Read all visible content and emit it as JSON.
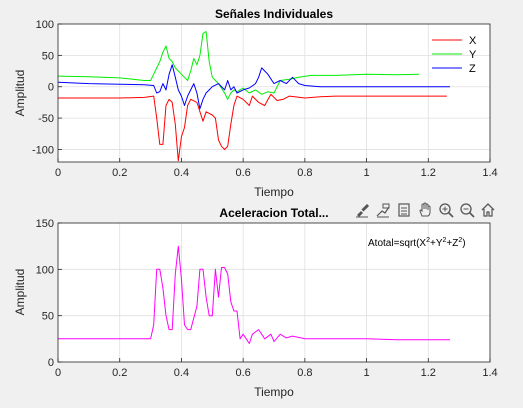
{
  "chart_data": [
    {
      "type": "line",
      "title": "Señales Individuales",
      "xlabel": "Tiempo",
      "ylabel": "Amplitud",
      "xlim": [
        0,
        1.4
      ],
      "ylim": [
        -120,
        100
      ],
      "xticks": [
        "0",
        "0.2",
        "0.4",
        "0.6",
        "0.8",
        "1",
        "1.2",
        "1.4"
      ],
      "yticks": [
        "-100",
        "-50",
        "0",
        "50",
        "100"
      ],
      "grid": true,
      "legend_position": "top-right",
      "series": [
        {
          "name": "X",
          "color": "#ff0000",
          "points": [
            [
              0,
              -18
            ],
            [
              0.1,
              -18
            ],
            [
              0.2,
              -18
            ],
            [
              0.28,
              -17
            ],
            [
              0.31,
              -15
            ],
            [
              0.32,
              -50
            ],
            [
              0.33,
              -92
            ],
            [
              0.34,
              -92
            ],
            [
              0.35,
              -30
            ],
            [
              0.36,
              -20
            ],
            [
              0.37,
              -25
            ],
            [
              0.38,
              -60
            ],
            [
              0.39,
              -118
            ],
            [
              0.4,
              -80
            ],
            [
              0.41,
              -65
            ],
            [
              0.42,
              -30
            ],
            [
              0.43,
              -20
            ],
            [
              0.45,
              -25
            ],
            [
              0.47,
              -55
            ],
            [
              0.48,
              -40
            ],
            [
              0.5,
              -45
            ],
            [
              0.51,
              -50
            ],
            [
              0.52,
              -85
            ],
            [
              0.53,
              -95
            ],
            [
              0.54,
              -100
            ],
            [
              0.55,
              -95
            ],
            [
              0.56,
              -60
            ],
            [
              0.57,
              -30
            ],
            [
              0.58,
              -15
            ],
            [
              0.6,
              -20
            ],
            [
              0.62,
              -30
            ],
            [
              0.63,
              -15
            ],
            [
              0.65,
              -25
            ],
            [
              0.67,
              -30
            ],
            [
              0.69,
              -12
            ],
            [
              0.71,
              -22
            ],
            [
              0.73,
              -20
            ],
            [
              0.75,
              -15
            ],
            [
              0.8,
              -18
            ],
            [
              0.85,
              -16
            ],
            [
              0.9,
              -15
            ],
            [
              1.0,
              -15
            ],
            [
              1.1,
              -15
            ],
            [
              1.2,
              -15
            ],
            [
              1.26,
              -15
            ]
          ]
        },
        {
          "name": "Y",
          "color": "#00ee00",
          "points": [
            [
              0,
              17
            ],
            [
              0.1,
              16
            ],
            [
              0.2,
              14
            ],
            [
              0.28,
              10
            ],
            [
              0.3,
              10
            ],
            [
              0.31,
              20
            ],
            [
              0.32,
              30
            ],
            [
              0.33,
              40
            ],
            [
              0.34,
              55
            ],
            [
              0.35,
              65
            ],
            [
              0.36,
              45
            ],
            [
              0.37,
              40
            ],
            [
              0.38,
              30
            ],
            [
              0.39,
              25
            ],
            [
              0.4,
              20
            ],
            [
              0.41,
              15
            ],
            [
              0.42,
              10
            ],
            [
              0.43,
              25
            ],
            [
              0.44,
              45
            ],
            [
              0.45,
              35
            ],
            [
              0.46,
              50
            ],
            [
              0.47,
              85
            ],
            [
              0.48,
              88
            ],
            [
              0.49,
              40
            ],
            [
              0.5,
              15
            ],
            [
              0.51,
              10
            ],
            [
              0.52,
              5
            ],
            [
              0.54,
              -10
            ],
            [
              0.55,
              -20
            ],
            [
              0.56,
              -10
            ],
            [
              0.57,
              -5
            ],
            [
              0.58,
              -8
            ],
            [
              0.6,
              -2
            ],
            [
              0.62,
              -10
            ],
            [
              0.64,
              -5
            ],
            [
              0.66,
              -12
            ],
            [
              0.68,
              -8
            ],
            [
              0.7,
              -10
            ],
            [
              0.72,
              10
            ],
            [
              0.75,
              12
            ],
            [
              0.78,
              15
            ],
            [
              0.82,
              18
            ],
            [
              0.9,
              18
            ],
            [
              1.0,
              20
            ],
            [
              1.1,
              19
            ],
            [
              1.17,
              20
            ]
          ]
        },
        {
          "name": "Z",
          "color": "#0000ff",
          "points": [
            [
              0,
              7
            ],
            [
              0.1,
              5
            ],
            [
              0.2,
              4
            ],
            [
              0.28,
              3
            ],
            [
              0.31,
              2
            ],
            [
              0.32,
              -10
            ],
            [
              0.33,
              -8
            ],
            [
              0.34,
              5
            ],
            [
              0.35,
              -5
            ],
            [
              0.36,
              20
            ],
            [
              0.37,
              35
            ],
            [
              0.38,
              15
            ],
            [
              0.39,
              -5
            ],
            [
              0.4,
              -15
            ],
            [
              0.41,
              -30
            ],
            [
              0.42,
              -15
            ],
            [
              0.43,
              -5
            ],
            [
              0.44,
              5
            ],
            [
              0.45,
              -10
            ],
            [
              0.46,
              -35
            ],
            [
              0.47,
              -20
            ],
            [
              0.48,
              -10
            ],
            [
              0.49,
              -5
            ],
            [
              0.5,
              0
            ],
            [
              0.52,
              5
            ],
            [
              0.54,
              -5
            ],
            [
              0.55,
              10
            ],
            [
              0.56,
              -5
            ],
            [
              0.57,
              0
            ],
            [
              0.58,
              -10
            ],
            [
              0.6,
              -5
            ],
            [
              0.62,
              -2
            ],
            [
              0.64,
              5
            ],
            [
              0.65,
              15
            ],
            [
              0.66,
              30
            ],
            [
              0.67,
              25
            ],
            [
              0.68,
              20
            ],
            [
              0.7,
              5
            ],
            [
              0.72,
              10
            ],
            [
              0.74,
              5
            ],
            [
              0.76,
              15
            ],
            [
              0.78,
              5
            ],
            [
              0.8,
              2
            ],
            [
              0.85,
              0
            ],
            [
              0.9,
              0
            ],
            [
              1.0,
              0
            ],
            [
              1.1,
              0
            ],
            [
              1.2,
              0
            ],
            [
              1.27,
              0
            ]
          ]
        }
      ]
    },
    {
      "type": "line",
      "title": "Aceleracion Total...",
      "xlabel": "Tiempo",
      "ylabel": "Amplitud",
      "xlim": [
        0,
        1.4
      ],
      "ylim": [
        0,
        150
      ],
      "xticks": [
        "0",
        "0.2",
        "0.4",
        "0.6",
        "0.8",
        "1",
        "1.2",
        "1.4"
      ],
      "yticks": [
        "0",
        "50",
        "100",
        "150"
      ],
      "grid": true,
      "annotation": {
        "base": "Atotal=sqrt(X",
        "exp1": "2",
        "mid1": "+Y",
        "exp2": "2",
        "mid2": "+Z",
        "exp3": "2",
        "end": ")"
      },
      "series": [
        {
          "name": "Atotal",
          "color": "#ff00ff",
          "points": [
            [
              0,
              25
            ],
            [
              0.1,
              25
            ],
            [
              0.2,
              25
            ],
            [
              0.3,
              25
            ],
            [
              0.31,
              40
            ],
            [
              0.32,
              100
            ],
            [
              0.33,
              100
            ],
            [
              0.34,
              80
            ],
            [
              0.35,
              50
            ],
            [
              0.36,
              35
            ],
            [
              0.37,
              35
            ],
            [
              0.38,
              95
            ],
            [
              0.39,
              125
            ],
            [
              0.4,
              90
            ],
            [
              0.41,
              40
            ],
            [
              0.42,
              35
            ],
            [
              0.43,
              35
            ],
            [
              0.45,
              60
            ],
            [
              0.46,
              100
            ],
            [
              0.47,
              100
            ],
            [
              0.48,
              70
            ],
            [
              0.49,
              50
            ],
            [
              0.5,
              50
            ],
            [
              0.51,
              100
            ],
            [
              0.52,
              70
            ],
            [
              0.53,
              102
            ],
            [
              0.54,
              102
            ],
            [
              0.55,
              95
            ],
            [
              0.56,
              65
            ],
            [
              0.57,
              55
            ],
            [
              0.58,
              55
            ],
            [
              0.59,
              25
            ],
            [
              0.6,
              30
            ],
            [
              0.62,
              20
            ],
            [
              0.63,
              30
            ],
            [
              0.65,
              35
            ],
            [
              0.67,
              25
            ],
            [
              0.69,
              30
            ],
            [
              0.7,
              22
            ],
            [
              0.72,
              30
            ],
            [
              0.74,
              26
            ],
            [
              0.76,
              28
            ],
            [
              0.8,
              25
            ],
            [
              0.9,
              25
            ],
            [
              1.0,
              25
            ],
            [
              1.1,
              24
            ],
            [
              1.2,
              24
            ],
            [
              1.27,
              24
            ]
          ]
        }
      ]
    }
  ],
  "toolbar": {
    "icons": [
      "brush-icon",
      "data-tips-icon",
      "save-icon",
      "pan-hand-icon",
      "zoom-in-icon",
      "zoom-out-icon",
      "home-icon"
    ]
  }
}
